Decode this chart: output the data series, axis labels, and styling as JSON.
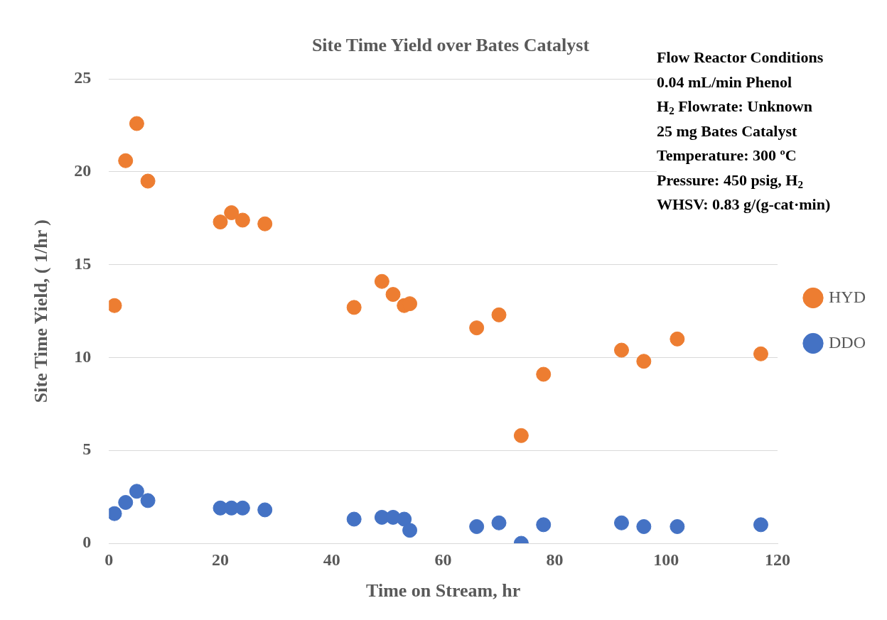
{
  "chart_data": {
    "type": "scatter",
    "title": "Site Time Yield over Bates Catalyst",
    "xlabel": "Time on Stream, hr",
    "ylabel": "Site Time Yield, ( 1/hr )",
    "x": [
      1,
      3,
      5,
      7,
      20,
      22,
      24,
      28,
      44,
      49,
      51,
      53,
      54,
      66,
      70,
      74,
      78,
      92,
      96,
      102,
      117
    ],
    "series": [
      {
        "name": "HYD",
        "color": "#ed7d31",
        "values": [
          12.8,
          20.6,
          22.6,
          19.5,
          17.3,
          17.8,
          17.4,
          17.2,
          12.7,
          14.1,
          13.4,
          12.8,
          12.9,
          11.6,
          12.3,
          5.8,
          9.1,
          10.4,
          9.8,
          11.0,
          10.2
        ]
      },
      {
        "name": "DDO",
        "color": "#4472c4",
        "values": [
          1.6,
          2.2,
          2.8,
          2.3,
          1.9,
          1.9,
          1.9,
          1.8,
          1.3,
          1.4,
          1.4,
          1.3,
          0.7,
          0.9,
          1.1,
          0.0,
          1.0,
          1.1,
          0.9,
          0.9,
          1.0
        ]
      }
    ],
    "xlim": [
      0,
      120
    ],
    "xticks": [
      0,
      20,
      40,
      60,
      80,
      100,
      120
    ],
    "ylim": [
      0,
      25
    ],
    "yticks": [
      0,
      5,
      10,
      15,
      20,
      25
    ],
    "grid": "y",
    "legend": "right",
    "marker": "circle",
    "annotations": [
      "Flow Reactor Conditions",
      "0.04 mL/min Phenol",
      "H$_{2}$ Flowrate: Unknown",
      "25 mg Bates Catalyst",
      "Temperature: 300 ºC",
      "Pressure: 450 psig, H$_{2}$",
      "WHSV: 0.83 g/(g-cat·min)"
    ]
  }
}
